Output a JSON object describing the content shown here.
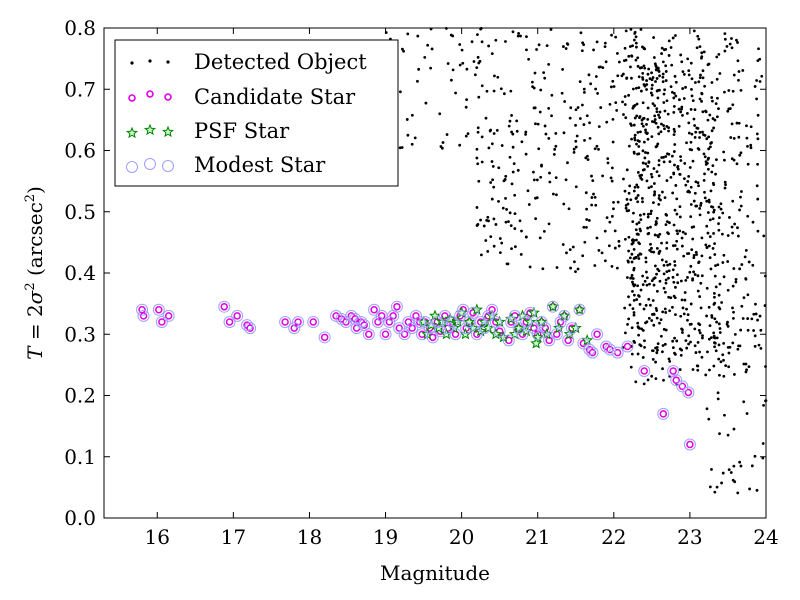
{
  "chart_data": {
    "type": "scatter",
    "xlabel": "Magnitude",
    "ylabel_parts": {
      "italic_T": "T",
      "eq": " = 2",
      "sigma": "σ",
      "sup2": "2",
      "open": " (arcsec",
      "sup2b": "2",
      "close": ")"
    },
    "xlim": [
      15.3,
      24
    ],
    "ylim": [
      0.0,
      0.8
    ],
    "x_ticks": [
      16,
      17,
      18,
      19,
      20,
      21,
      22,
      23,
      24
    ],
    "y_ticks": [
      0.0,
      0.1,
      0.2,
      0.3,
      0.4,
      0.5,
      0.6,
      0.7,
      0.8
    ],
    "x_tick_labels": [
      "16",
      "17",
      "18",
      "19",
      "20",
      "21",
      "22",
      "23",
      "24"
    ],
    "y_tick_labels": [
      "0.0",
      "0.1",
      "0.2",
      "0.3",
      "0.4",
      "0.5",
      "0.6",
      "0.7",
      "0.8"
    ],
    "grid": false,
    "legend_position": "top-left",
    "series": [
      {
        "name": "Detected Object",
        "marker": "dot",
        "color": "#000000"
      },
      {
        "name": "Candidate Star",
        "marker": "small-circle",
        "color": "#e000e0"
      },
      {
        "name": "PSF Star",
        "marker": "star",
        "color": "#008000"
      },
      {
        "name": "Modest Star",
        "marker": "open-circle",
        "color": "#a0a0ff"
      }
    ],
    "stars": [
      [
        15.8,
        0.34
      ],
      [
        15.82,
        0.33
      ],
      [
        16.02,
        0.34
      ],
      [
        16.06,
        0.32
      ],
      [
        16.15,
        0.33
      ],
      [
        16.88,
        0.345
      ],
      [
        16.95,
        0.32
      ],
      [
        17.05,
        0.33
      ],
      [
        17.18,
        0.315
      ],
      [
        17.22,
        0.31
      ],
      [
        17.68,
        0.32
      ],
      [
        17.8,
        0.31
      ],
      [
        17.85,
        0.32
      ],
      [
        18.05,
        0.32
      ],
      [
        18.2,
        0.295
      ],
      [
        18.35,
        0.33
      ],
      [
        18.42,
        0.325
      ],
      [
        18.48,
        0.32
      ],
      [
        18.55,
        0.33
      ],
      [
        18.6,
        0.325
      ],
      [
        18.62,
        0.31
      ],
      [
        18.68,
        0.32
      ],
      [
        18.72,
        0.315
      ],
      [
        18.78,
        0.3
      ],
      [
        18.85,
        0.34
      ],
      [
        18.9,
        0.32
      ],
      [
        18.95,
        0.33
      ],
      [
        19.0,
        0.3
      ],
      [
        19.05,
        0.32
      ],
      [
        19.1,
        0.33
      ],
      [
        19.15,
        0.345
      ],
      [
        19.18,
        0.31
      ],
      [
        19.25,
        0.3
      ],
      [
        19.3,
        0.32
      ],
      [
        19.35,
        0.31
      ],
      [
        19.4,
        0.33
      ],
      [
        19.45,
        0.32
      ],
      [
        19.48,
        0.3
      ],
      [
        19.52,
        0.32
      ],
      [
        19.58,
        0.31
      ],
      [
        19.62,
        0.295
      ],
      [
        19.68,
        0.32
      ],
      [
        19.72,
        0.305
      ],
      [
        19.78,
        0.33
      ],
      [
        19.82,
        0.31
      ],
      [
        19.88,
        0.32
      ],
      [
        19.92,
        0.3
      ],
      [
        19.98,
        0.33
      ],
      [
        20.02,
        0.34
      ],
      [
        20.06,
        0.31
      ],
      [
        20.1,
        0.32
      ],
      [
        20.15,
        0.335
      ],
      [
        20.2,
        0.3
      ],
      [
        20.25,
        0.32
      ],
      [
        20.3,
        0.31
      ],
      [
        20.35,
        0.33
      ],
      [
        20.4,
        0.34
      ],
      [
        20.45,
        0.32
      ],
      [
        20.5,
        0.305
      ],
      [
        20.62,
        0.29
      ],
      [
        20.65,
        0.32
      ],
      [
        20.7,
        0.33
      ],
      [
        20.75,
        0.31
      ],
      [
        20.8,
        0.3
      ],
      [
        20.85,
        0.32
      ],
      [
        20.9,
        0.335
      ],
      [
        20.95,
        0.31
      ],
      [
        21.0,
        0.3
      ],
      [
        21.05,
        0.32
      ],
      [
        21.1,
        0.31
      ],
      [
        21.15,
        0.29
      ],
      [
        21.2,
        0.345
      ],
      [
        21.25,
        0.3
      ],
      [
        21.3,
        0.32
      ],
      [
        21.35,
        0.33
      ],
      [
        21.4,
        0.29
      ],
      [
        21.45,
        0.31
      ],
      [
        21.55,
        0.34
      ],
      [
        21.6,
        0.285
      ],
      [
        21.68,
        0.275
      ],
      [
        21.72,
        0.27
      ],
      [
        21.78,
        0.3
      ],
      [
        21.9,
        0.28
      ],
      [
        21.95,
        0.275
      ],
      [
        22.05,
        0.27
      ],
      [
        22.18,
        0.28
      ],
      [
        22.4,
        0.24
      ],
      [
        22.65,
        0.17
      ],
      [
        22.78,
        0.24
      ],
      [
        22.82,
        0.225
      ],
      [
        22.9,
        0.215
      ],
      [
        22.98,
        0.205
      ],
      [
        23.0,
        0.12
      ]
    ],
    "psf_stars": [
      [
        19.5,
        0.32
      ],
      [
        19.55,
        0.3
      ],
      [
        19.6,
        0.315
      ],
      [
        19.65,
        0.33
      ],
      [
        19.7,
        0.31
      ],
      [
        19.75,
        0.32
      ],
      [
        19.8,
        0.3
      ],
      [
        19.85,
        0.325
      ],
      [
        19.9,
        0.31
      ],
      [
        19.95,
        0.32
      ],
      [
        20.0,
        0.335
      ],
      [
        20.05,
        0.3
      ],
      [
        20.1,
        0.32
      ],
      [
        20.15,
        0.31
      ],
      [
        20.2,
        0.34
      ],
      [
        20.25,
        0.305
      ],
      [
        20.3,
        0.32
      ],
      [
        20.35,
        0.31
      ],
      [
        20.4,
        0.33
      ],
      [
        20.45,
        0.3
      ],
      [
        20.5,
        0.32
      ],
      [
        20.65,
        0.325
      ],
      [
        20.7,
        0.3
      ],
      [
        20.75,
        0.31
      ],
      [
        20.8,
        0.33
      ],
      [
        20.85,
        0.305
      ],
      [
        20.9,
        0.32
      ],
      [
        20.95,
        0.335
      ],
      [
        21.0,
        0.295
      ],
      [
        21.05,
        0.32
      ],
      [
        21.12,
        0.3
      ],
      [
        21.2,
        0.345
      ],
      [
        21.28,
        0.31
      ],
      [
        21.35,
        0.33
      ],
      [
        21.42,
        0.3
      ],
      [
        21.5,
        0.31
      ],
      [
        21.55,
        0.34
      ],
      [
        21.65,
        0.29
      ],
      [
        20.98,
        0.285
      ],
      [
        20.55,
        0.295
      ]
    ]
  }
}
